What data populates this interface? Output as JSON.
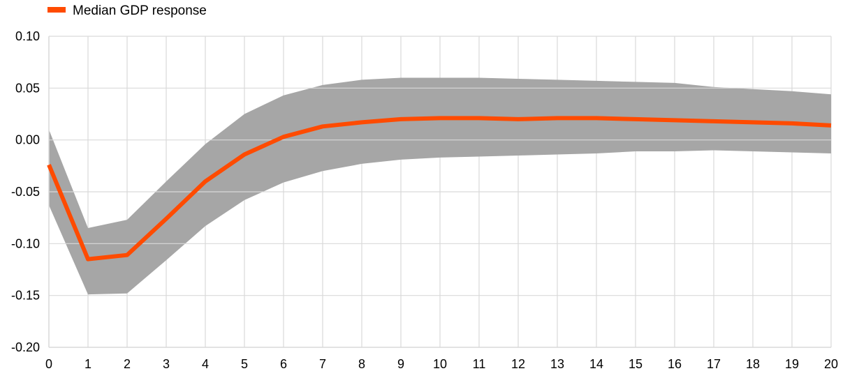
{
  "chart_data": {
    "type": "line",
    "title": "",
    "xlabel": "",
    "ylabel": "",
    "x": [
      0,
      1,
      2,
      3,
      4,
      5,
      6,
      7,
      8,
      9,
      10,
      11,
      12,
      13,
      14,
      15,
      16,
      17,
      18,
      19,
      20
    ],
    "xlim": [
      0,
      20
    ],
    "ylim": [
      -0.2,
      0.1
    ],
    "y_ticks": [
      "0.10",
      "0.05",
      "0.00",
      "-0.05",
      "-0.10",
      "-0.15",
      "-0.20"
    ],
    "y_tick_values": [
      0.1,
      0.05,
      0.0,
      -0.05,
      -0.1,
      -0.15,
      -0.2
    ],
    "x_ticks": [
      "0",
      "1",
      "2",
      "3",
      "4",
      "5",
      "6",
      "7",
      "8",
      "9",
      "10",
      "11",
      "12",
      "13",
      "14",
      "15",
      "16",
      "17",
      "18",
      "19",
      "20"
    ],
    "grid": true,
    "legend_position": "top-left",
    "series": [
      {
        "name": "Median GDP response",
        "color": "#ff4b00",
        "values": [
          -0.024,
          -0.115,
          -0.111,
          -0.076,
          -0.04,
          -0.014,
          0.003,
          0.013,
          0.017,
          0.02,
          0.021,
          0.021,
          0.02,
          0.021,
          0.021,
          0.02,
          0.019,
          0.018,
          0.017,
          0.016,
          0.014
        ]
      }
    ],
    "band": {
      "color": "#a6a6a6",
      "upper": [
        0.01,
        -0.085,
        -0.077,
        -0.04,
        -0.004,
        0.025,
        0.043,
        0.053,
        0.058,
        0.06,
        0.06,
        0.06,
        0.059,
        0.058,
        0.057,
        0.056,
        0.055,
        0.051,
        0.049,
        0.047,
        0.044
      ],
      "lower": [
        -0.063,
        -0.149,
        -0.148,
        -0.116,
        -0.083,
        -0.058,
        -0.041,
        -0.03,
        -0.023,
        -0.019,
        -0.017,
        -0.016,
        -0.015,
        -0.014,
        -0.013,
        -0.011,
        -0.011,
        -0.01,
        -0.011,
        -0.012,
        -0.013
      ]
    }
  }
}
